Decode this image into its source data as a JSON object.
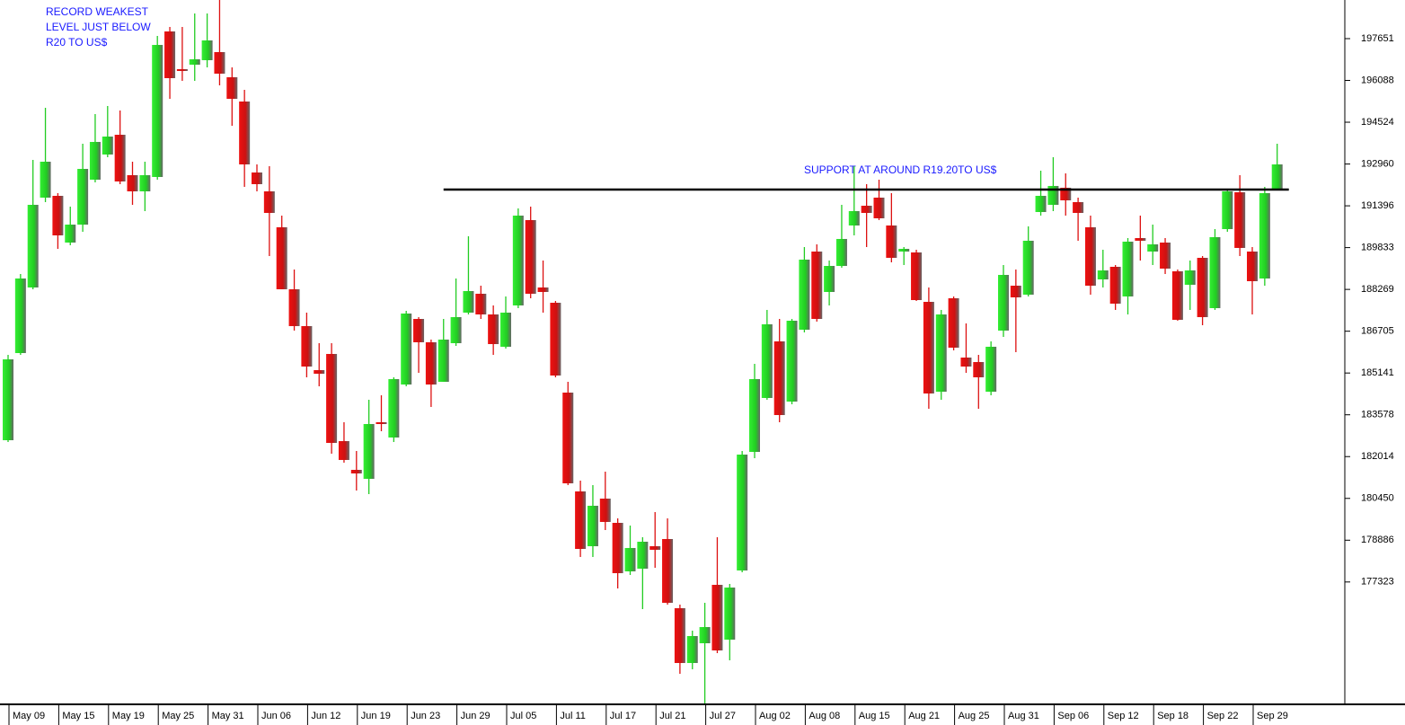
{
  "chart_data": {
    "type": "candlestick",
    "annotations": [
      "RECORD WEAKEST",
      "LEVEL JUST BELOW",
      "R20 TO US$"
    ],
    "support_label": "SUPPORT AT AROUND R19.20TO US$",
    "support_level": 192004,
    "up_color": "#22cc22",
    "down_color": "#dd1111",
    "ylim": [
      172779,
      199096
    ],
    "yticks": [
      197651,
      196088,
      194524,
      192960,
      191396,
      189833,
      188269,
      186705,
      185141,
      183578,
      182014,
      180450,
      178886,
      177323
    ],
    "categories": [
      "May 09",
      null,
      null,
      null,
      "May 15",
      null,
      null,
      null,
      "May 19",
      null,
      null,
      null,
      "May 25",
      null,
      null,
      null,
      "May 31",
      null,
      null,
      null,
      "Jun 06",
      null,
      null,
      null,
      "Jun 12",
      null,
      null,
      null,
      "Jun 19",
      null,
      null,
      null,
      "Jun 23",
      null,
      null,
      null,
      "Jun 29",
      null,
      null,
      null,
      "Jul 05",
      null,
      null,
      null,
      "Jul 11",
      null,
      null,
      null,
      "Jul 17",
      null,
      null,
      null,
      "Jul 21",
      null,
      null,
      null,
      "Jul 27",
      null,
      null,
      null,
      "Aug 02",
      null,
      null,
      null,
      "Aug 08",
      null,
      null,
      null,
      "Aug 15",
      null,
      null,
      null,
      "Aug 21",
      null,
      null,
      null,
      "Aug 25",
      null,
      null,
      null,
      "Aug 31",
      null,
      null,
      null,
      "Sep 06",
      null,
      null,
      null,
      "Sep 12",
      null,
      null,
      null,
      "Sep 18",
      null,
      null,
      null,
      "Sep 22",
      null,
      null,
      null,
      "Sep 29",
      null,
      null
    ],
    "open": [
      182627,
      185887,
      188341,
      191702,
      191769,
      190021,
      190693,
      192374,
      193315,
      194054,
      192542,
      191937,
      192475,
      197920,
      196508,
      196676,
      196844,
      197147,
      196206,
      195298,
      192643,
      191937,
      190593,
      188274,
      186896,
      185249,
      185854,
      182593,
      181518,
      181182,
      183299,
      182728,
      184711,
      187164,
      186291,
      184812,
      186257,
      187400,
      188106,
      187332,
      186123,
      187669,
      190862,
      188341,
      187769,
      184408,
      180711,
      178661,
      180442,
      179535,
      177720,
      177821,
      178661,
      178930,
      176342,
      174292,
      175031,
      177216,
      175166,
      177754,
      182190,
      184207,
      186324,
      184072,
      186761,
      189685,
      188173,
      189147,
      190660,
      191399,
      191702,
      190660,
      189685,
      189652,
      187803,
      184442,
      187937,
      185719,
      185551,
      184442,
      186728,
      188408,
      188072,
      191164,
      191433,
      192072,
      191534,
      190593,
      188643,
      189114,
      188005,
      190189,
      189685,
      190021,
      188946,
      188442,
      189450,
      187568,
      190525,
      191903,
      189685,
      188677,
      192038
    ],
    "high": [
      185820,
      188845,
      193113,
      195063,
      191870,
      191366,
      193718,
      194828,
      195130,
      194962,
      193046,
      193046,
      197752,
      198088,
      198088,
      198592,
      198592,
      199096,
      196575,
      195735,
      192945,
      192878,
      191030,
      189013,
      187400,
      186257,
      186257,
      183299,
      182224,
      184140,
      184308,
      184980,
      187467,
      187232,
      186391,
      187164,
      188677,
      190257,
      188408,
      187669,
      188005,
      191298,
      191366,
      189349,
      187837,
      184812,
      181115,
      180947,
      181451,
      179703,
      179434,
      178997,
      179938,
      179703,
      176476,
      175502,
      176544,
      178997,
      177249,
      182224,
      185484,
      187501,
      187164,
      187164,
      189853,
      189954,
      189349,
      191433,
      192878,
      192206,
      192374,
      191870,
      189853,
      189752,
      188341,
      187501,
      188005,
      186996,
      185820,
      186324,
      189181,
      189013,
      190626,
      192710,
      193214,
      192609,
      191702,
      191030,
      189752,
      189181,
      190189,
      191030,
      190693,
      190189,
      189013,
      189349,
      189517,
      190525,
      192038,
      192542,
      189853,
      192105,
      193718
    ],
    "low": [
      182560,
      185820,
      188274,
      191534,
      189786,
      189920,
      190425,
      192273,
      193214,
      192206,
      191433,
      191198,
      192374,
      195399,
      196071,
      196071,
      196575,
      195903,
      194391,
      192105,
      191937,
      189517,
      188274,
      186728,
      184980,
      184644,
      182123,
      181787,
      180745,
      180610,
      182963,
      182560,
      184644,
      185148,
      183871,
      184812,
      186156,
      187332,
      187164,
      185820,
      186055,
      187568,
      187937,
      187400,
      184980,
      180947,
      178258,
      178258,
      179266,
      177081,
      177586,
      176308,
      177854,
      176476,
      173888,
      174057,
      172779,
      174662,
      174393,
      177686,
      181955,
      184140,
      183299,
      183971,
      186660,
      187064,
      187669,
      189080,
      190290,
      189853,
      190862,
      189282,
      189181,
      187837,
      183803,
      184140,
      185988,
      185148,
      183803,
      184308,
      186492,
      185921,
      188005,
      191030,
      191198,
      191030,
      190089,
      188072,
      188341,
      187501,
      187332,
      189349,
      189181,
      188845,
      187097,
      187501,
      186929,
      187501,
      190425,
      189517,
      187332,
      188408,
      191971
    ],
    "close": [
      185652,
      188677,
      191433,
      193046,
      190290,
      190693,
      192777,
      193786,
      193987,
      192307,
      191937,
      192542,
      197415,
      196172,
      196441,
      196878,
      197584,
      196340,
      195399,
      192945,
      192206,
      191130,
      188274,
      186896,
      185383,
      185114,
      182526,
      181888,
      181384,
      183232,
      183232,
      184913,
      187366,
      186291,
      184711,
      186391,
      187232,
      188206,
      187332,
      186223,
      187400,
      191030,
      188106,
      188173,
      185047,
      181014,
      178560,
      180174,
      179569,
      177653,
      178594,
      178829,
      178527,
      176544,
      174292,
      175300,
      175636,
      174762,
      177115,
      182089,
      184913,
      186963,
      183568,
      187097,
      189383,
      187164,
      189147,
      190156,
      191198,
      191130,
      190929,
      189450,
      189786,
      187870,
      184375,
      187332,
      186089,
      185383,
      184980,
      186123,
      188811,
      187971,
      190089,
      191769,
      192139,
      191601,
      191130,
      188408,
      188979,
      187736,
      190055,
      190089,
      189954,
      189047,
      187131,
      188979,
      187232,
      190223,
      191937,
      189820,
      188576,
      191870,
      192945
    ]
  }
}
